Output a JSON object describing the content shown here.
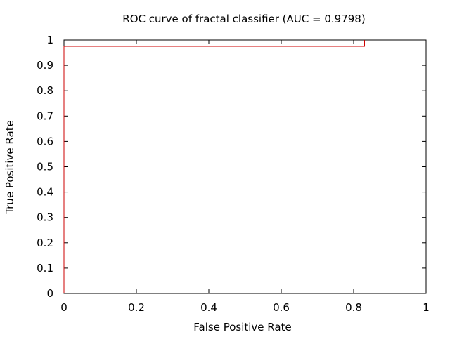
{
  "chart_data": {
    "type": "line",
    "title": "ROC curve of fractal classifier (AUC = 0.9798)",
    "xlabel": "False Positive Rate",
    "ylabel": "True Positive Rate",
    "xlim": [
      0,
      1
    ],
    "ylim": [
      0,
      1
    ],
    "x_ticks": [
      "0",
      "0.2",
      "0.4",
      "0.6",
      "0.8",
      "1"
    ],
    "y_ticks": [
      "0",
      "0.1",
      "0.2",
      "0.3",
      "0.4",
      "0.5",
      "0.6",
      "0.7",
      "0.8",
      "0.9",
      "1"
    ],
    "grid": false,
    "series": [
      {
        "color": "#cc0000",
        "x": [
          0,
          0,
          0.83,
          0.83
        ],
        "y": [
          0,
          0.975,
          0.975,
          1
        ]
      }
    ]
  }
}
